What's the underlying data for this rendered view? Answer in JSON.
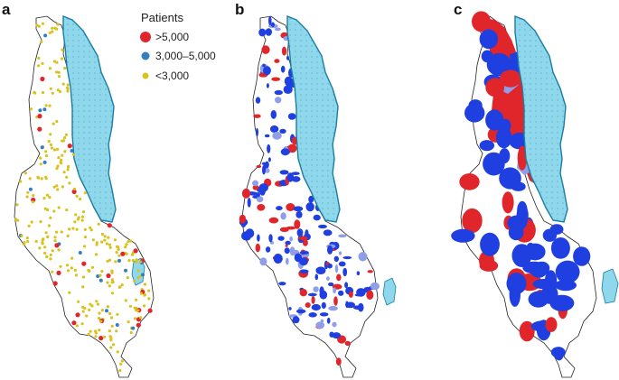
{
  "panels": [
    {
      "letter": "a"
    },
    {
      "letter": "b"
    },
    {
      "letter": "c"
    }
  ],
  "legend": {
    "title": "Patients",
    "items": [
      {
        "label": ">5,000",
        "color": "#e0262b"
      },
      {
        "label": "3,000–5,000",
        "color": "#2f7fc1"
      },
      {
        "label": "<3,000",
        "color": "#d9c21c"
      }
    ]
  },
  "colors": {
    "lake": "#8fd8ec",
    "lake_edge": "#1a7da3",
    "land": "#ffffff",
    "border": "#222222",
    "red": "#e0262b",
    "blue": "#1f3fe0",
    "light_blue": "#8f9ee8",
    "yellow": "#d9c21c",
    "dot_blue": "#2f7fc1"
  }
}
